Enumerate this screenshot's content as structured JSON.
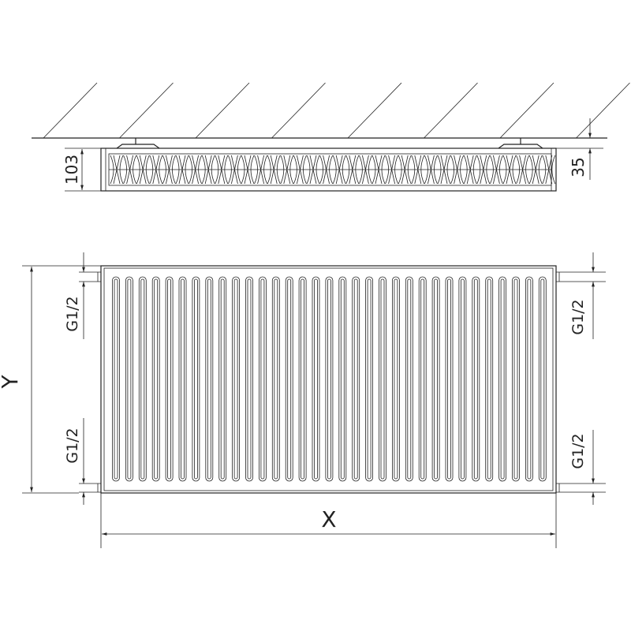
{
  "dimensions": {
    "depth_label": "103",
    "wall_distance_label": "35",
    "height_label": "Y",
    "width_label": "X",
    "connection_top_left": "G1/2",
    "connection_bottom_left": "G1/2",
    "connection_top_right": "G1/2",
    "connection_bottom_right": "G1/2"
  },
  "colors": {
    "line": "#222222",
    "background": "#ffffff"
  }
}
